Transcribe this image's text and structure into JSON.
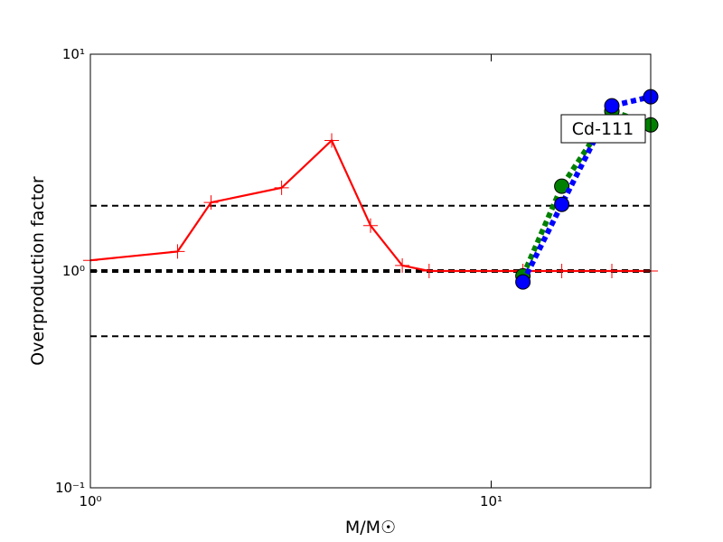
{
  "chart_data": {
    "type": "line",
    "xlabel": "M/M☉",
    "ylabel": "Overproduction factor",
    "annotation": "Cd-111",
    "xscale": "log",
    "yscale": "log",
    "xlim": [
      1,
      25
    ],
    "ylim": [
      0.1,
      10
    ],
    "xticks": [
      {
        "value": 1,
        "label": "10⁰"
      },
      {
        "value": 10,
        "label": "10¹"
      }
    ],
    "yticks": [
      {
        "value": 0.1,
        "label": "10⁻¹"
      },
      {
        "value": 1,
        "label": "10⁰"
      },
      {
        "value": 10,
        "label": "10¹"
      }
    ],
    "reference_lines": [
      2,
      0.5
    ],
    "unity_line": 1,
    "series": [
      {
        "color": "#ff0000",
        "marker": "plus",
        "linestyle": "solid",
        "x": [
          1,
          1.65,
          2,
          3,
          4,
          5,
          6,
          7,
          12,
          15,
          20,
          25
        ],
        "values": [
          1.12,
          1.23,
          2.07,
          2.42,
          4,
          1.62,
          1.06,
          1,
          1,
          1,
          1,
          1
        ]
      },
      {
        "color": "#008000",
        "marker": "circle",
        "linestyle": "dotted",
        "x": [
          12,
          15,
          20,
          25
        ],
        "values": [
          0.95,
          2.46,
          5.47,
          4.72
        ]
      },
      {
        "color": "#0000ff",
        "marker": "circle",
        "linestyle": "dotted",
        "x": [
          12,
          15,
          20,
          25
        ],
        "values": [
          0.89,
          2.03,
          5.78,
          6.36
        ]
      }
    ]
  }
}
